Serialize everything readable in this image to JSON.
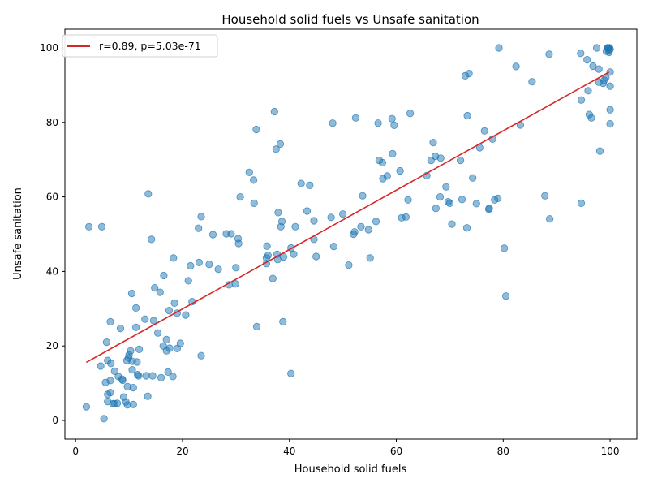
{
  "chart_data": {
    "type": "scatter",
    "title": "Household solid fuels vs Unsafe sanitation",
    "xlabel": "Household solid fuels",
    "ylabel": "Unsafe sanitation",
    "xlim": [
      -2,
      105
    ],
    "ylim": [
      -5,
      105
    ],
    "xticks": [
      0,
      20,
      40,
      60,
      80,
      100
    ],
    "yticks": [
      0,
      20,
      40,
      60,
      80,
      100
    ],
    "grid": false,
    "legend_position": "top-left",
    "point_color": "#1f77b4",
    "fit_color": "#d62728",
    "fit": {
      "label": "r=0.89, p=5.03e-71",
      "x": [
        2,
        99.8
      ],
      "y": [
        15.6,
        93.5
      ]
    },
    "points": [
      [
        2,
        3.7
      ],
      [
        2.5,
        52
      ],
      [
        4.7,
        14.6
      ],
      [
        4.9,
        52
      ],
      [
        5.3,
        0.5
      ],
      [
        5.6,
        10.2
      ],
      [
        5.8,
        21
      ],
      [
        6,
        16.1
      ],
      [
        6,
        7
      ],
      [
        6,
        5.1
      ],
      [
        6.5,
        26.5
      ],
      [
        6.5,
        10.7
      ],
      [
        6.5,
        7.5
      ],
      [
        6.6,
        15.3
      ],
      [
        7,
        4.5
      ],
      [
        7.3,
        4.5
      ],
      [
        7.3,
        13.2
      ],
      [
        7.8,
        4.6
      ],
      [
        8,
        11.8
      ],
      [
        8.4,
        24.7
      ],
      [
        8.7,
        11.1
      ],
      [
        8.8,
        10.8
      ],
      [
        9,
        6.3
      ],
      [
        9.4,
        5
      ],
      [
        9.6,
        16.1
      ],
      [
        9.7,
        9.1
      ],
      [
        9.7,
        4.2
      ],
      [
        9.9,
        16.8
      ],
      [
        10,
        17.6
      ],
      [
        10.3,
        18.7
      ],
      [
        10.5,
        34.1
      ],
      [
        10.6,
        15.9
      ],
      [
        10.6,
        13.6
      ],
      [
        10.8,
        8.8
      ],
      [
        10.8,
        4.3
      ],
      [
        11.3,
        30.2
      ],
      [
        11.3,
        25
      ],
      [
        11.5,
        15.7
      ],
      [
        11.6,
        12.3
      ],
      [
        11.8,
        12
      ],
      [
        11.9,
        19.1
      ],
      [
        13,
        27.2
      ],
      [
        13.2,
        12
      ],
      [
        13.5,
        6.5
      ],
      [
        13.6,
        60.8
      ],
      [
        14.2,
        48.6
      ],
      [
        14.4,
        12
      ],
      [
        14.6,
        26.8
      ],
      [
        14.8,
        35.6
      ],
      [
        15.4,
        23.5
      ],
      [
        15.8,
        34.4
      ],
      [
        16,
        11.5
      ],
      [
        16.4,
        20
      ],
      [
        16.5,
        38.9
      ],
      [
        17,
        21.7
      ],
      [
        17,
        18.7
      ],
      [
        17.3,
        13
      ],
      [
        17.5,
        29.5
      ],
      [
        17.6,
        19.4
      ],
      [
        18.2,
        11.8
      ],
      [
        18.3,
        43.6
      ],
      [
        18.5,
        31.5
      ],
      [
        19,
        28.8
      ],
      [
        19,
        19.3
      ],
      [
        19.6,
        20.7
      ],
      [
        20.6,
        28.3
      ],
      [
        21.1,
        37.5
      ],
      [
        21.5,
        41.5
      ],
      [
        21.8,
        31.9
      ],
      [
        23,
        51.6
      ],
      [
        23.1,
        42.4
      ],
      [
        23.5,
        54.7
      ],
      [
        23.5,
        17.4
      ],
      [
        25,
        41.9
      ],
      [
        25.7,
        49.9
      ],
      [
        26.7,
        40.6
      ],
      [
        28.2,
        50.1
      ],
      [
        28.7,
        36.4
      ],
      [
        29.1,
        50.1
      ],
      [
        29.9,
        36.7
      ],
      [
        30,
        41
      ],
      [
        30.4,
        48.8
      ],
      [
        30.5,
        47.5
      ],
      [
        30.8,
        60
      ],
      [
        32.5,
        66.6
      ],
      [
        33.3,
        64.5
      ],
      [
        33.4,
        58.3
      ],
      [
        33.8,
        78.1
      ],
      [
        33.9,
        25.2
      ],
      [
        35.7,
        43.6
      ],
      [
        35.7,
        42.1
      ],
      [
        35.8,
        46.8
      ],
      [
        36,
        44.3
      ],
      [
        36.9,
        38.1
      ],
      [
        37.2,
        82.9
      ],
      [
        37.5,
        72.8
      ],
      [
        37.7,
        44.6
      ],
      [
        37.8,
        43.2
      ],
      [
        37.9,
        55.8
      ],
      [
        38.3,
        74.2
      ],
      [
        38.4,
        52
      ],
      [
        38.6,
        53.4
      ],
      [
        38.8,
        26.5
      ],
      [
        38.9,
        43.9
      ],
      [
        40.3,
        46.3
      ],
      [
        40.3,
        12.6
      ],
      [
        40.8,
        44.6
      ],
      [
        41.1,
        52
      ],
      [
        42.2,
        63.6
      ],
      [
        43.3,
        56.2
      ],
      [
        43.8,
        63.1
      ],
      [
        44.6,
        48.6
      ],
      [
        44.6,
        53.6
      ],
      [
        45,
        44
      ],
      [
        47.8,
        54.5
      ],
      [
        48.1,
        79.8
      ],
      [
        48.3,
        46.7
      ],
      [
        50,
        55.4
      ],
      [
        51.1,
        41.7
      ],
      [
        52,
        50
      ],
      [
        52.2,
        50.6
      ],
      [
        52.4,
        81.2
      ],
      [
        53.4,
        52
      ],
      [
        53.7,
        60.3
      ],
      [
        54.8,
        51.2
      ],
      [
        55.1,
        43.6
      ],
      [
        56.2,
        53.4
      ],
      [
        56.6,
        79.8
      ],
      [
        56.8,
        69.8
      ],
      [
        57.4,
        69.2
      ],
      [
        57.5,
        64.9
      ],
      [
        58.3,
        65.6
      ],
      [
        59.2,
        81
      ],
      [
        59.3,
        71.6
      ],
      [
        59.6,
        79.2
      ],
      [
        60.7,
        67
      ],
      [
        61,
        54.4
      ],
      [
        61.8,
        54.6
      ],
      [
        62.2,
        59.2
      ],
      [
        62.6,
        82.4
      ],
      [
        65.7,
        65.7
      ],
      [
        66.5,
        69.8
      ],
      [
        66.9,
        74.6
      ],
      [
        67.3,
        70.9
      ],
      [
        67.4,
        56.9
      ],
      [
        68.2,
        60
      ],
      [
        68.3,
        70.4
      ],
      [
        69.3,
        62.7
      ],
      [
        69.7,
        58.7
      ],
      [
        70,
        58.3
      ],
      [
        70.4,
        52.7
      ],
      [
        72,
        69.8
      ],
      [
        72.3,
        59.3
      ],
      [
        72.9,
        92.5
      ],
      [
        73.2,
        51.7
      ],
      [
        73.3,
        81.8
      ],
      [
        73.6,
        93.1
      ],
      [
        74.3,
        65.1
      ],
      [
        75,
        58.2
      ],
      [
        75.6,
        73.2
      ],
      [
        76.5,
        77.7
      ],
      [
        77.3,
        56.7
      ],
      [
        77.4,
        56.9
      ],
      [
        78,
        75.5
      ],
      [
        78.4,
        59.2
      ],
      [
        79,
        59.6
      ],
      [
        79.2,
        100
      ],
      [
        80.2,
        46.2
      ],
      [
        80.5,
        33.4
      ],
      [
        82.4,
        95
      ],
      [
        83.2,
        79.3
      ],
      [
        85.4,
        90.9
      ],
      [
        87.8,
        60.3
      ],
      [
        88.6,
        98.3
      ],
      [
        88.7,
        54.1
      ],
      [
        94.5,
        98.5
      ],
      [
        94.6,
        58.3
      ],
      [
        94.6,
        86
      ],
      [
        95.7,
        96.8
      ],
      [
        95.9,
        88.5
      ],
      [
        96.1,
        82.1
      ],
      [
        96.5,
        81.2
      ],
      [
        96.8,
        95.1
      ],
      [
        97.5,
        100
      ],
      [
        97.9,
        94.3
      ],
      [
        97.9,
        90.8
      ],
      [
        98.1,
        72.3
      ],
      [
        98.7,
        90.5
      ],
      [
        98.9,
        91.3
      ],
      [
        99.2,
        92.1
      ],
      [
        99.3,
        99.1
      ],
      [
        99.5,
        100
      ],
      [
        99.7,
        100
      ],
      [
        99.8,
        99.4
      ],
      [
        99.8,
        98.8
      ],
      [
        99.9,
        100
      ],
      [
        100,
        93.5
      ],
      [
        100,
        89.7
      ],
      [
        100,
        83.4
      ],
      [
        100,
        79.6
      ],
      [
        99.6,
        100
      ],
      [
        100,
        99.6
      ]
    ]
  }
}
